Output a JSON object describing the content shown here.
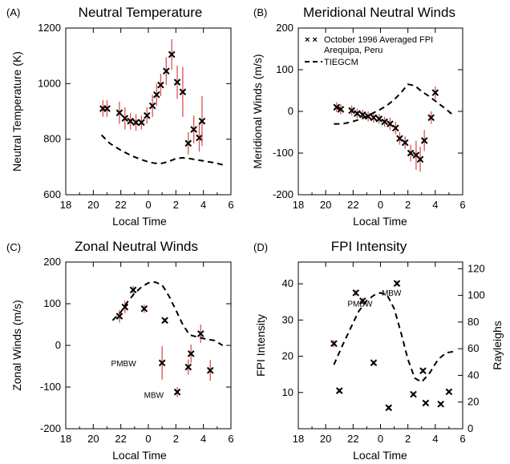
{
  "chart_data": [
    {
      "type": "scatter",
      "letter": "(A)",
      "title": "Neutral Temperature",
      "xlabel": "Local Time",
      "ylabel": "Neutral Temperature (K)",
      "xlim": [
        18,
        30
      ],
      "ylim": [
        600,
        1200
      ],
      "x_tick_values": [
        18,
        20,
        22,
        24,
        26,
        28,
        30
      ],
      "x_tick_labels": [
        "18",
        "20",
        "22",
        "0",
        "2",
        "4",
        "6"
      ],
      "y_tick_values": [
        600,
        800,
        1000,
        1200
      ],
      "y_tick_labels": [
        "600",
        "800",
        "1000",
        "1200"
      ],
      "series": [
        {
          "kind": "points",
          "marker": "x",
          "error_color": "#d9534f",
          "points": [
            {
              "x": 20.7,
              "y": 910,
              "err": 30
            },
            {
              "x": 21.0,
              "y": 910,
              "err": 30
            },
            {
              "x": 21.9,
              "y": 895,
              "err": 40
            },
            {
              "x": 22.3,
              "y": 875,
              "err": 40
            },
            {
              "x": 22.7,
              "y": 865,
              "err": 30
            },
            {
              "x": 23.1,
              "y": 860,
              "err": 30
            },
            {
              "x": 23.5,
              "y": 860,
              "err": 25
            },
            {
              "x": 23.9,
              "y": 885,
              "err": 30
            },
            {
              "x": 24.3,
              "y": 920,
              "err": 40
            },
            {
              "x": 24.6,
              "y": 960,
              "err": 40
            },
            {
              "x": 24.9,
              "y": 995,
              "err": 40
            },
            {
              "x": 25.3,
              "y": 1045,
              "err": 50
            },
            {
              "x": 25.7,
              "y": 1105,
              "err": 55
            },
            {
              "x": 26.1,
              "y": 1005,
              "err": 60
            },
            {
              "x": 26.5,
              "y": 970,
              "err": 90
            },
            {
              "x": 26.9,
              "y": 785,
              "err": 40
            },
            {
              "x": 27.3,
              "y": 835,
              "err": 50
            },
            {
              "x": 27.7,
              "y": 805,
              "err": 50
            },
            {
              "x": 27.9,
              "y": 865,
              "err": 90
            }
          ]
        },
        {
          "kind": "dashed",
          "x": [
            20.6,
            21.2,
            22.0,
            22.8,
            23.4,
            24.0,
            24.5,
            25.0,
            25.5,
            26.0,
            26.5,
            27.0,
            27.6,
            28.2,
            28.8,
            29.4
          ],
          "y": [
            815,
            785,
            760,
            740,
            728,
            718,
            713,
            713,
            720,
            730,
            733,
            730,
            725,
            720,
            715,
            708
          ]
        }
      ]
    },
    {
      "type": "scatter",
      "letter": "(B)",
      "title": "Meridional Neutral Winds",
      "xlabel": "Local Time",
      "ylabel": "Meridional Winds (m/s)",
      "xlim": [
        18,
        30
      ],
      "ylim": [
        -200,
        200
      ],
      "x_tick_values": [
        18,
        20,
        22,
        24,
        26,
        28,
        30
      ],
      "x_tick_labels": [
        "18",
        "20",
        "22",
        "0",
        "2",
        "4",
        "6"
      ],
      "y_tick_values": [
        -200,
        -100,
        0,
        100,
        200
      ],
      "y_tick_labels": [
        "-200",
        "-100",
        "0",
        "100",
        "200"
      ],
      "legend": {
        "position": "top-left",
        "entries": [
          {
            "marker": "x",
            "lines": [
              "October 1996 Averaged FPI",
              "Arequipa, Peru"
            ]
          },
          {
            "marker": "dashed",
            "lines": [
              "TIEGCM"
            ]
          }
        ]
      },
      "series": [
        {
          "kind": "points",
          "marker": "x",
          "name": "October 1996 Averaged FPI",
          "error_color": "#d9534f",
          "points": [
            {
              "x": 20.8,
              "y": 10,
              "err": 12
            },
            {
              "x": 21.1,
              "y": 5,
              "err": 12
            },
            {
              "x": 21.9,
              "y": 2,
              "err": 12
            },
            {
              "x": 22.3,
              "y": -5,
              "err": 12
            },
            {
              "x": 22.7,
              "y": -8,
              "err": 12
            },
            {
              "x": 23.1,
              "y": -12,
              "err": 12
            },
            {
              "x": 23.5,
              "y": -15,
              "err": 12
            },
            {
              "x": 23.9,
              "y": -18,
              "err": 12
            },
            {
              "x": 24.3,
              "y": -25,
              "err": 12
            },
            {
              "x": 24.7,
              "y": -30,
              "err": 15
            },
            {
              "x": 25.1,
              "y": -40,
              "err": 15
            },
            {
              "x": 25.4,
              "y": -65,
              "err": 15
            },
            {
              "x": 25.8,
              "y": -75,
              "err": 15
            },
            {
              "x": 26.2,
              "y": -100,
              "err": 20
            },
            {
              "x": 26.6,
              "y": -105,
              "err": 35
            },
            {
              "x": 26.9,
              "y": -115,
              "err": 30
            },
            {
              "x": 27.2,
              "y": -70,
              "err": 25
            },
            {
              "x": 27.7,
              "y": -15,
              "err": 15
            },
            {
              "x": 28.0,
              "y": 45,
              "err": 15
            }
          ]
        },
        {
          "kind": "dashed",
          "name": "TIEGCM",
          "x": [
            20.6,
            21.2,
            21.8,
            22.4,
            23.0,
            23.5,
            24.0,
            24.5,
            25.0,
            25.5,
            26.0,
            26.5,
            27.0,
            27.6,
            28.2,
            28.8,
            29.4
          ],
          "y": [
            -30,
            -30,
            -26,
            -20,
            -12,
            -3,
            5,
            15,
            28,
            45,
            65,
            62,
            48,
            35,
            20,
            5,
            -12
          ]
        }
      ]
    },
    {
      "type": "scatter",
      "letter": "(C)",
      "title": "Zonal Neutral Winds",
      "xlabel": "Local Time",
      "ylabel": "Zonal Winds (m/s)",
      "xlim": [
        18,
        30
      ],
      "ylim": [
        -200,
        200
      ],
      "x_tick_values": [
        18,
        20,
        22,
        24,
        26,
        28,
        30
      ],
      "x_tick_labels": [
        "18",
        "20",
        "22",
        "0",
        "2",
        "4",
        "6"
      ],
      "y_tick_values": [
        -200,
        -100,
        0,
        100,
        200
      ],
      "y_tick_labels": [
        "-200",
        "-100",
        "0",
        "100",
        "200"
      ],
      "annotations": [
        {
          "text": "PMBW",
          "x": 22.2,
          "y": -42
        },
        {
          "text": "MBW",
          "x": 24.4,
          "y": -118
        }
      ],
      "series": [
        {
          "kind": "points",
          "marker": "x",
          "error_color": "#d9534f",
          "points": [
            {
              "x": 21.9,
              "y": 70,
              "err": 15
            },
            {
              "x": 22.3,
              "y": 92,
              "err": 15
            },
            {
              "x": 22.9,
              "y": 133,
              "err": 10
            },
            {
              "x": 23.7,
              "y": 88,
              "err": 10
            },
            {
              "x": 25.0,
              "y": -42,
              "err": 40
            },
            {
              "x": 25.2,
              "y": 60,
              "err": 5
            },
            {
              "x": 26.1,
              "y": -112,
              "err": 12
            },
            {
              "x": 26.9,
              "y": -52,
              "err": 18
            },
            {
              "x": 27.1,
              "y": -20,
              "err": 22
            },
            {
              "x": 27.8,
              "y": 28,
              "err": 22
            },
            {
              "x": 28.5,
              "y": -60,
              "err": 25
            }
          ]
        },
        {
          "kind": "dashed",
          "x": [
            21.4,
            22.0,
            22.5,
            23.0,
            23.5,
            24.0,
            24.5,
            25.0,
            25.5,
            26.0,
            26.5,
            27.0,
            27.6,
            28.2,
            28.8,
            29.4
          ],
          "y": [
            60,
            80,
            105,
            125,
            140,
            150,
            152,
            145,
            118,
            85,
            50,
            25,
            20,
            15,
            12,
            0
          ]
        }
      ]
    },
    {
      "type": "scatter",
      "letter": "(D)",
      "title": "FPI Intensity",
      "xlabel": "Local Time",
      "ylabel": "FPI Intensity",
      "y2label": "Rayleighs",
      "xlim": [
        18,
        30
      ],
      "ylim": [
        0,
        46
      ],
      "y2lim": [
        0,
        125
      ],
      "x_tick_values": [
        18,
        20,
        22,
        24,
        26,
        28,
        30
      ],
      "x_tick_labels": [
        "18",
        "20",
        "22",
        "0",
        "2",
        "4",
        "6"
      ],
      "y_tick_values": [
        10,
        20,
        30,
        40
      ],
      "y_tick_labels": [
        "10",
        "20",
        "30",
        "40"
      ],
      "y2_tick_values": [
        0,
        20,
        40,
        60,
        80,
        100,
        120
      ],
      "y2_tick_labels": [
        "0",
        "20",
        "40",
        "60",
        "80",
        "100",
        "120"
      ],
      "annotations": [
        {
          "text": "PMBW",
          "x": 22.5,
          "y": 34.6
        },
        {
          "text": "MBW",
          "x": 24.8,
          "y": 37.6
        }
      ],
      "series": [
        {
          "kind": "points",
          "marker": "x",
          "error_color": "#d9534f",
          "points": [
            {
              "x": 20.6,
              "y": 23.5,
              "err": 1
            },
            {
              "x": 21.0,
              "y": 10.5,
              "err": 0.6
            },
            {
              "x": 22.2,
              "y": 37.5,
              "err": 0.8
            },
            {
              "x": 22.7,
              "y": 35.3,
              "err": 0.8
            },
            {
              "x": 23.5,
              "y": 18.2,
              "err": 0.6
            },
            {
              "x": 24.6,
              "y": 5.8,
              "err": 0.6
            },
            {
              "x": 25.2,
              "y": 40.1,
              "err": 0.8
            },
            {
              "x": 26.4,
              "y": 9.5,
              "err": 0.5
            },
            {
              "x": 27.1,
              "y": 16.0,
              "err": 0.6
            },
            {
              "x": 27.3,
              "y": 7.1,
              "err": 0.5
            },
            {
              "x": 28.4,
              "y": 6.8,
              "err": 0.5
            },
            {
              "x": 29.0,
              "y": 10.2,
              "err": 0.5
            }
          ]
        },
        {
          "kind": "dashed",
          "axis": "right",
          "x": [
            20.6,
            21.2,
            21.8,
            22.4,
            23.0,
            23.5,
            24.0,
            24.5,
            25.0,
            25.5,
            26.0,
            26.5,
            27.0,
            27.6,
            28.2,
            28.8,
            29.4
          ],
          "y": [
            48,
            62,
            75,
            88,
            96,
            100,
            102,
            100,
            90,
            72,
            52,
            38,
            35,
            42,
            52,
            57,
            58
          ]
        }
      ]
    }
  ]
}
